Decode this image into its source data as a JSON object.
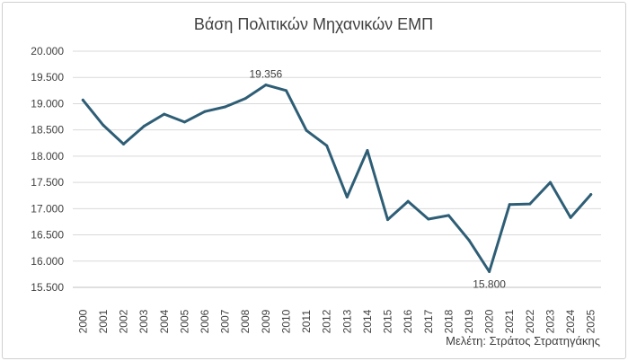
{
  "chart_data": {
    "type": "line",
    "title": "Βάση Πολιτικών Μηχανικών ΕΜΠ",
    "xlabel": "",
    "ylabel": "",
    "x": [
      "2000",
      "2001",
      "2002",
      "2003",
      "2004",
      "2005",
      "2006",
      "2007",
      "2008",
      "2009",
      "2010",
      "2011",
      "2012",
      "2013",
      "2014",
      "2015",
      "2016",
      "2017",
      "2018",
      "2019",
      "2020",
      "2021",
      "2022",
      "2023",
      "2024",
      "2025"
    ],
    "series": [
      {
        "values": [
          19070,
          18590,
          18230,
          18570,
          18800,
          18650,
          18850,
          18940,
          19100,
          19356,
          19250,
          18490,
          18200,
          17220,
          18110,
          16790,
          17140,
          16800,
          16870,
          16400,
          15800,
          17080,
          17090,
          17500,
          16830,
          17270
        ],
        "color": "#2e5e76"
      }
    ],
    "ylim": [
      15500,
      20000
    ],
    "yticks": [
      "15.500",
      "16.000",
      "16.500",
      "17.000",
      "17.500",
      "18.000",
      "18.500",
      "19.000",
      "19.500",
      "20.000"
    ],
    "ytick_values": [
      15500,
      16000,
      16500,
      17000,
      17500,
      18000,
      18500,
      19000,
      19500,
      20000
    ],
    "data_labels": [
      {
        "index": 9,
        "text": "19.356",
        "position": "above"
      },
      {
        "index": 20,
        "text": "15.800",
        "position": "below"
      }
    ],
    "grid": true,
    "legend": "none",
    "gridline_color": "#d9d9d9",
    "axis_color": "#bfbfbf"
  },
  "footer": {
    "credit": "Μελέτη: Στράτος Στρατηγάκης"
  }
}
